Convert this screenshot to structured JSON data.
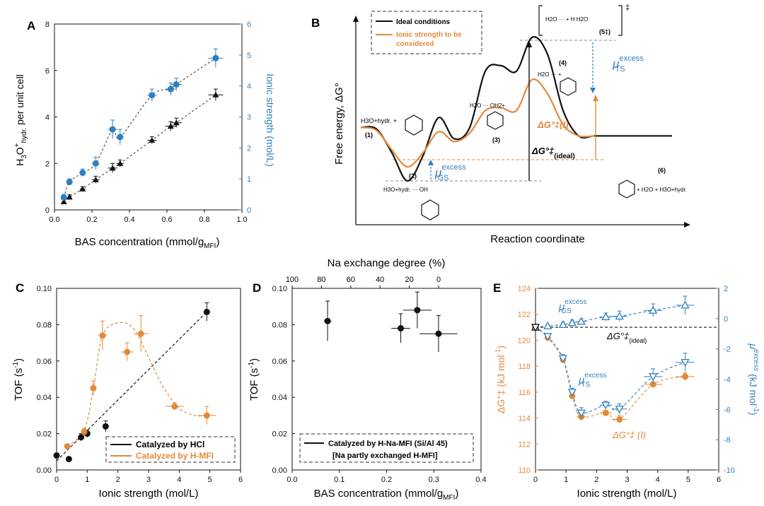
{
  "colors": {
    "black": "#111111",
    "blue": "#2e7fc1",
    "orange": "#e28a3b",
    "grid": "#999999"
  },
  "chart_data": [
    {
      "id": "A",
      "panel_label": "A",
      "type": "scatter",
      "xlabel": "BAS concentration (mmol/g",
      "xlabel_sub": "MFI",
      "xlabel_close": ")",
      "ylabel": "H3O+hydr. per unit cell",
      "ylabel_parts": {
        "main": "H",
        "sub1": "3",
        "main2": "O",
        "sup": "+",
        "sub2": "hydr.",
        "tail": " per unit cell"
      },
      "y2label": "Ionic strength (mol/L)",
      "xlim": [
        0,
        1.0
      ],
      "ylim": [
        0,
        8
      ],
      "y2lim": [
        0,
        6
      ],
      "xticks": [
        "0.0",
        "0.2",
        "0.4",
        "0.6",
        "0.8",
        "1.0"
      ],
      "yticks": [
        "0",
        "2",
        "4",
        "6",
        "8"
      ],
      "y2ticks": [
        "0",
        "1",
        "2",
        "3",
        "4",
        "5",
        "6"
      ],
      "series": [
        {
          "name": "H3O+ per unit cell",
          "axis": "left",
          "color": "black",
          "marker": "triangle",
          "x": [
            0.05,
            0.08,
            0.15,
            0.22,
            0.31,
            0.35,
            0.52,
            0.62,
            0.65,
            0.86
          ],
          "y": [
            0.35,
            0.55,
            0.9,
            1.3,
            1.8,
            2.0,
            3.0,
            3.6,
            3.75,
            4.95
          ],
          "xerr": [
            0.01,
            0.01,
            0.015,
            0.02,
            0.025,
            0.02,
            0.025,
            0.03,
            0.03,
            0.04
          ],
          "yerr": [
            0.1,
            0.1,
            0.1,
            0.15,
            0.2,
            0.15,
            0.15,
            0.2,
            0.2,
            0.25
          ]
        },
        {
          "name": "Ionic strength",
          "axis": "right",
          "color": "blue",
          "marker": "circle",
          "x": [
            0.05,
            0.08,
            0.15,
            0.22,
            0.31,
            0.35,
            0.52,
            0.62,
            0.65,
            0.86
          ],
          "y": [
            0.4,
            0.9,
            1.2,
            1.5,
            2.6,
            2.35,
            3.7,
            3.9,
            4.05,
            4.9
          ],
          "xerr": [
            0.01,
            0.01,
            0.015,
            0.02,
            0.025,
            0.02,
            0.025,
            0.03,
            0.03,
            0.04
          ],
          "yerr": [
            0.1,
            0.1,
            0.12,
            0.2,
            0.3,
            0.25,
            0.2,
            0.2,
            0.2,
            0.3
          ]
        }
      ]
    },
    {
      "id": "B",
      "panel_label": "B",
      "type": "line",
      "xlabel": "Reaction coordinate",
      "ylabel": "Free energy, ΔG°",
      "legend": [
        "Ideal conditions",
        "Ionic strength to be considered"
      ],
      "legend_lines": [
        "Ideal conditions",
        "Ionic strength to be",
        "considered"
      ],
      "states": [
        "(1)",
        "(2)",
        "(3)",
        "(4)",
        "(5‡)",
        "(6)"
      ],
      "annotations": {
        "mu_ts": "μ",
        "mu_ts_sup": "excess",
        "mu_ts_sub": "TS",
        "mu_gs": "μ",
        "mu_gs_sup": "excess",
        "mu_gs_sub": "GS",
        "dg_ideal": "ΔG°‡",
        "dg_ideal_sub": "(ideal)",
        "dg_ionic": "ΔG°‡(I)",
        "species_1": "H3O+hydr. +",
        "species_2": "H3O+hydr. ··· OH",
        "species_3": "H2O ··· OH2+",
        "species_4": "H2O ··· +",
        "species_ts": "H2O ··· + H  H2O",
        "species_6": "+ H2O + H3O+hydr.",
        "double_dagger": "‡"
      },
      "black_curve": {
        "x": [
          0,
          0.05,
          0.1,
          0.15,
          0.2,
          0.25,
          0.3,
          0.35,
          0.4,
          0.45,
          0.5,
          0.55,
          0.6,
          0.65,
          0.7,
          0.75,
          0.8,
          0.85,
          0.9,
          0.95,
          1.0
        ],
        "y": [
          0.38,
          0.37,
          0.2,
          0.0,
          0.18,
          0.45,
          0.3,
          0.38,
          0.78,
          0.82,
          0.78,
          1.02,
          0.9,
          0.5,
          0.32,
          0.32,
          0.32,
          0.32,
          0.32,
          0.32,
          0.32
        ]
      },
      "orange_curve": {
        "x": [
          0,
          0.05,
          0.1,
          0.15,
          0.2,
          0.25,
          0.3,
          0.35,
          0.4,
          0.45,
          0.5,
          0.55,
          0.6,
          0.65,
          0.7,
          0.75
        ],
        "y": [
          0.38,
          0.36,
          0.22,
          0.1,
          0.2,
          0.35,
          0.28,
          0.34,
          0.5,
          0.52,
          0.5,
          0.72,
          0.62,
          0.4,
          0.32,
          0.32
        ]
      }
    },
    {
      "id": "C",
      "panel_label": "C",
      "type": "scatter",
      "xlabel": "Ionic strength (mol/L)",
      "ylabel": "TOF (s",
      "ylabel_sup": "-1",
      "ylabel_close": ")",
      "xlim": [
        0,
        6
      ],
      "ylim": [
        0,
        0.1
      ],
      "xticks": [
        "0",
        "1",
        "2",
        "3",
        "4",
        "5",
        "6"
      ],
      "yticks": [
        "0.00",
        "0.02",
        "0.04",
        "0.06",
        "0.08",
        "0.10"
      ],
      "legend": [
        "Catalyzed by HCl",
        "Catalyzed by H-MFI"
      ],
      "series": [
        {
          "name": "Catalyzed by HCl",
          "color": "black",
          "x": [
            0.0,
            0.4,
            0.8,
            1.0,
            1.6,
            4.9
          ],
          "y": [
            0.008,
            0.006,
            0.018,
            0.02,
            0.024,
            0.087
          ],
          "xerr": [
            0,
            0,
            0.05,
            0.05,
            0.05,
            0.1
          ],
          "yerr": [
            0.001,
            0.001,
            0.002,
            0.002,
            0.003,
            0.005
          ]
        },
        {
          "name": "Catalyzed by H-MFI",
          "color": "orange",
          "x": [
            0.35,
            0.9,
            1.2,
            1.5,
            2.3,
            2.75,
            3.85,
            4.9
          ],
          "y": [
            0.013,
            0.021,
            0.045,
            0.074,
            0.065,
            0.075,
            0.035,
            0.03
          ],
          "xerr": [
            0.05,
            0.1,
            0.1,
            0.15,
            0.2,
            0.25,
            0.3,
            0.3
          ],
          "yerr": [
            0.001,
            0.002,
            0.004,
            0.008,
            0.005,
            0.01,
            0.002,
            0.005
          ]
        }
      ],
      "trend_hcl": {
        "x": [
          0,
          4.9
        ],
        "y": [
          0.005,
          0.087
        ]
      },
      "trend_hmfi": {
        "x": [
          0.35,
          0.9,
          1.2,
          1.5,
          2.0,
          2.5,
          3.0,
          3.5,
          4.0,
          4.5,
          4.9
        ],
        "y": [
          0.013,
          0.022,
          0.045,
          0.074,
          0.081,
          0.078,
          0.062,
          0.045,
          0.034,
          0.03,
          0.03
        ]
      }
    },
    {
      "id": "D",
      "panel_label": "D",
      "type": "scatter",
      "xlabel": "BAS concentration (mmol/g",
      "xlabel_sub": "MFI",
      "xlabel_close": ")",
      "ylabel": "TOF (s",
      "ylabel_sup": "-1",
      "ylabel_close": ")",
      "x2label": "Na exchange degree (%)",
      "xlim": [
        0,
        0.4
      ],
      "ylim": [
        0,
        0.1
      ],
      "xticks": [
        "0.0",
        "0.1",
        "0.2",
        "0.3",
        "0.4"
      ],
      "yticks": [
        "0.00",
        "0.02",
        "0.04",
        "0.06",
        "0.08",
        "0.10"
      ],
      "x2ticks": [
        "100",
        "80",
        "60",
        "40",
        "20",
        "0"
      ],
      "legend": [
        "Catalyzed by H-Na-MFI (Si/Al 45)",
        "[Na partly exchanged H-MFI]"
      ],
      "series": [
        {
          "name": "Catalyzed by H-Na-MFI (Si/Al 45)",
          "color": "black",
          "x": [
            0.075,
            0.23,
            0.265,
            0.31
          ],
          "y": [
            0.082,
            0.078,
            0.088,
            0.075
          ],
          "xerr": [
            0.008,
            0.02,
            0.03,
            0.04
          ],
          "yerr": [
            0.011,
            0.008,
            0.01,
            0.01
          ]
        }
      ]
    },
    {
      "id": "E",
      "panel_label": "E",
      "type": "line",
      "xlabel": "Ionic strength (mol/L)",
      "ylabel": "ΔG°‡ (kJ mol",
      "ylabel_sup": "-1",
      "ylabel_close": ")",
      "y2label": "μ",
      "y2label_sup": "excess",
      "y2label_tail": " (kJ mol",
      "y2label_sup2": "-1",
      "y2label_close": ")",
      "xlim": [
        0,
        6
      ],
      "ylim": [
        110,
        124
      ],
      "y2lim": [
        -11,
        3
      ],
      "xticks": [
        "0",
        "1",
        "2",
        "3",
        "4",
        "5",
        "6"
      ],
      "yticks": [
        "110",
        "112",
        "114",
        "116",
        "118",
        "120",
        "122",
        "124"
      ],
      "y2ticks": [
        "-10",
        "-8",
        "-6",
        "-4",
        "-2",
        "0",
        "2"
      ],
      "annotations": {
        "mu_gs": "μ",
        "mu_gs_sup": "excess",
        "mu_gs_sub": "GS",
        "mu_ts": "μ",
        "mu_ts_sup": "excess",
        "mu_ts_sub": "TS",
        "dg_ideal": "ΔG°‡",
        "dg_ideal_sub": "(ideal)",
        "dg_ionic": "ΔG°‡ (I)"
      },
      "series": [
        {
          "name": "ΔG°‡ (I)",
          "axis": "left",
          "color": "orange",
          "marker": "circle",
          "x": [
            0.0,
            0.4,
            0.9,
            1.2,
            1.5,
            2.3,
            2.75,
            3.85,
            4.9
          ],
          "y": [
            121.0,
            120.2,
            118.5,
            115.7,
            114.1,
            114.4,
            113.9,
            116.6,
            117.2
          ],
          "xerr": [
            0,
            0.05,
            0.1,
            0.1,
            0.15,
            0.2,
            0.25,
            0.3,
            0.3
          ],
          "yerr": [
            0.1,
            0.1,
            0.2,
            0.2,
            0.3,
            0.2,
            0.3,
            0.1,
            0.3
          ]
        },
        {
          "name": "μ excess GS",
          "axis": "right",
          "color": "blue",
          "marker": "triangle-up",
          "x": [
            0.0,
            0.4,
            0.9,
            1.2,
            1.5,
            2.3,
            2.75,
            3.85,
            4.9
          ],
          "y": [
            0.0,
            0.1,
            0.2,
            0.35,
            0.45,
            0.8,
            0.85,
            1.3,
            1.7
          ],
          "xerr": [
            0,
            0.05,
            0.1,
            0.1,
            0.15,
            0.2,
            0.25,
            0.3,
            0.3
          ],
          "yerr": [
            0.1,
            0.1,
            0.2,
            0.2,
            0.2,
            0.3,
            0.4,
            0.5,
            0.7
          ]
        },
        {
          "name": "μ excess TS",
          "axis": "right",
          "color": "blue",
          "marker": "triangle-down",
          "x": [
            0.0,
            0.4,
            0.9,
            1.2,
            1.5,
            2.3,
            2.75,
            3.85,
            4.9
          ],
          "y": [
            0.0,
            -0.7,
            -2.4,
            -5.0,
            -6.6,
            -6.0,
            -6.3,
            -3.8,
            -2.7
          ],
          "xerr": [
            0,
            0.05,
            0.1,
            0.1,
            0.15,
            0.2,
            0.25,
            0.3,
            0.3
          ],
          "yerr": [
            0.1,
            0.2,
            0.3,
            0.3,
            0.4,
            0.3,
            0.4,
            0.6,
            0.7
          ]
        }
      ],
      "ideal_line_y2": 0
    }
  ]
}
